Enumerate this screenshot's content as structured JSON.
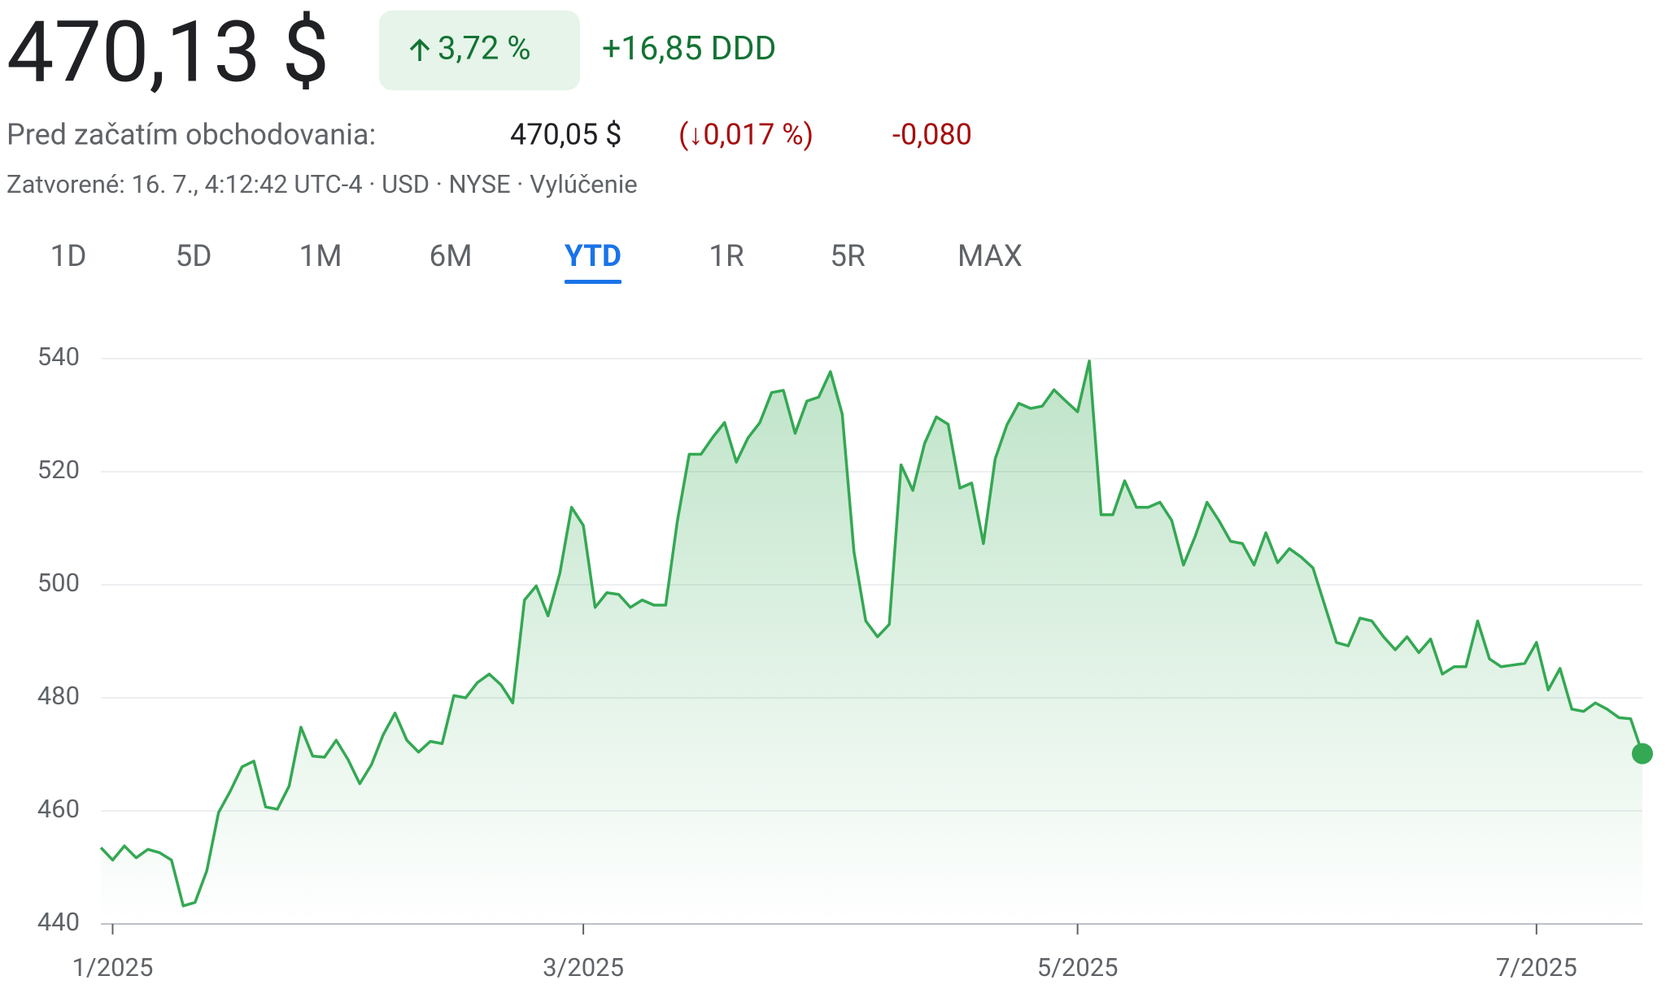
{
  "header": {
    "price": "470,13 $",
    "change_pct": "3,72 %",
    "change_abs": "+16,85 DDD",
    "pre_market_label": "Pred začatím obchodovania:",
    "pre_market_price": "470,05 $",
    "pre_market_change_pct": "(↓0,017 %)",
    "pre_market_change_abs": "-0,080",
    "status": "Zatvorené: 16. 7., 4:12:42 UTC-4 · USD · NYSE · ",
    "disclaimer": "Vylúčenie"
  },
  "tabs": {
    "items": [
      "1D",
      "5D",
      "1M",
      "6M",
      "YTD",
      "1R",
      "5R",
      "MAX"
    ],
    "selected": 4
  },
  "chart_data": {
    "type": "line",
    "color": "#34a853",
    "grid": true,
    "ylim": [
      440,
      540
    ],
    "yticks": [
      440,
      460,
      480,
      500,
      520,
      540
    ],
    "categories": [
      null,
      "1/2025",
      null,
      null,
      null,
      null,
      null,
      null,
      null,
      null,
      null,
      null,
      null,
      null,
      null,
      null,
      null,
      null,
      null,
      null,
      null,
      null,
      null,
      null,
      null,
      null,
      null,
      null,
      null,
      null,
      null,
      null,
      null,
      null,
      null,
      null,
      null,
      null,
      null,
      null,
      null,
      "3/2025",
      null,
      null,
      null,
      null,
      null,
      null,
      null,
      null,
      null,
      null,
      null,
      null,
      null,
      null,
      null,
      null,
      null,
      null,
      null,
      null,
      null,
      null,
      null,
      null,
      null,
      null,
      null,
      null,
      null,
      null,
      null,
      null,
      null,
      null,
      null,
      null,
      null,
      null,
      null,
      null,
      null,
      "5/2025",
      null,
      null,
      null,
      null,
      null,
      null,
      null,
      null,
      null,
      null,
      null,
      null,
      null,
      null,
      null,
      null,
      null,
      null,
      null,
      null,
      null,
      null,
      null,
      null,
      null,
      null,
      null,
      null,
      null,
      null,
      null,
      null,
      null,
      null,
      null,
      null,
      null,
      null,
      "7/2025",
      null,
      null,
      null,
      null,
      null,
      null,
      null,
      null,
      null
    ],
    "values": [
      453.5,
      451.3,
      453.8,
      451.7,
      453.2,
      452.6,
      451.3,
      443.2,
      443.8,
      449.4,
      459.7,
      463.5,
      467.8,
      468.8,
      460.7,
      460.3,
      464.4,
      474.8,
      469.7,
      469.5,
      472.5,
      469.1,
      464.8,
      468.2,
      473.5,
      477.3,
      472.5,
      470.4,
      472.3,
      471.9,
      480.4,
      480.0,
      482.7,
      484.2,
      482.3,
      479.1,
      497.3,
      499.8,
      494.5,
      502.0,
      513.7,
      510.5,
      496.0,
      498.6,
      498.3,
      496.0,
      497.3,
      496.4,
      496.4,
      511.4,
      523.1,
      523.1,
      526.1,
      528.7,
      521.7,
      526.0,
      528.7,
      534.0,
      534.4,
      526.8,
      532.5,
      533.2,
      537.7,
      530.2,
      505.8,
      493.6,
      490.8,
      493.0,
      521.2,
      516.7,
      525.0,
      529.7,
      528.4,
      517.1,
      518.0,
      507.3,
      522.3,
      528.3,
      532.1,
      531.2,
      531.6,
      534.5,
      532.5,
      530.6,
      539.6,
      512.4,
      512.4,
      518.4,
      513.7,
      513.7,
      514.6,
      511.4,
      503.5,
      508.6,
      514.6,
      511.4,
      507.7,
      507.3,
      503.5,
      509.2,
      503.9,
      506.4,
      504.9,
      503.0,
      496.4,
      489.8,
      489.2,
      494.1,
      493.6,
      490.8,
      488.5,
      490.8,
      488.0,
      490.4,
      484.2,
      485.5,
      485.5,
      493.6,
      486.9,
      485.5,
      485.8,
      486.1,
      489.8,
      481.4,
      485.2,
      478.0,
      477.6,
      479.1,
      478.0,
      476.5,
      476.3,
      470.13
    ]
  }
}
